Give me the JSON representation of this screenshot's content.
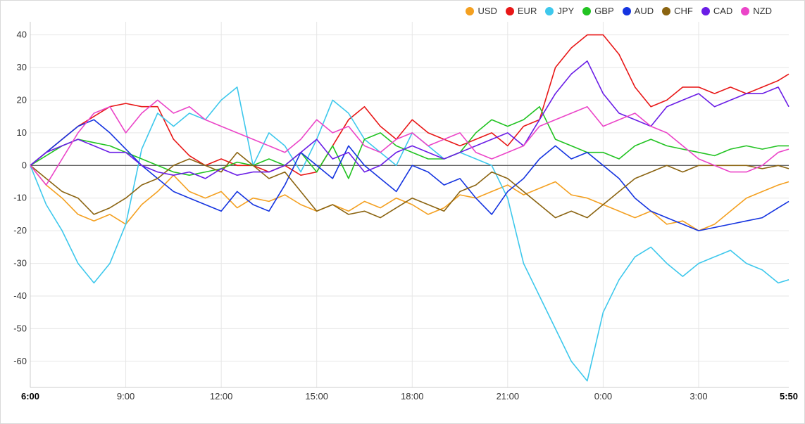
{
  "chart_data": {
    "type": "line",
    "x_ticks": [
      "6:00",
      "9:00",
      "12:00",
      "15:00",
      "18:00",
      "21:00",
      "0:00",
      "3:00",
      "5:50"
    ],
    "y_ticks": [
      40,
      30,
      20,
      10,
      0,
      -10,
      -20,
      -30,
      -40,
      -50,
      -60
    ],
    "ylim": [
      -68,
      44
    ],
    "xlim_hours": [
      0,
      23.833
    ],
    "grid": true,
    "legend_position": "top-right",
    "series": [
      {
        "name": "USD",
        "color": "#f4a020",
        "hours": [
          0,
          0.5,
          1,
          1.5,
          2,
          2.5,
          3,
          3.5,
          4,
          4.5,
          5,
          5.5,
          6,
          6.5,
          7,
          7.5,
          8,
          8.5,
          9,
          9.5,
          10,
          10.5,
          11,
          11.5,
          12,
          12.5,
          13,
          13.5,
          14,
          14.5,
          15,
          15.5,
          16,
          16.5,
          17,
          17.5,
          18,
          18.5,
          19,
          19.5,
          20,
          20.5,
          21,
          21.5,
          22,
          22.5,
          23,
          23.5,
          23.833
        ],
        "values": [
          0,
          -6,
          -10,
          -15,
          -17,
          -15,
          -18,
          -12,
          -8,
          -3,
          -8,
          -10,
          -8,
          -13,
          -10,
          -11,
          -9,
          -12,
          -14,
          -12,
          -14,
          -11,
          -13,
          -10,
          -12,
          -15,
          -13,
          -9,
          -10,
          -8,
          -6,
          -9,
          -7,
          -5,
          -9,
          -10,
          -12,
          -14,
          -16,
          -14,
          -18,
          -17,
          -20,
          -18,
          -14,
          -10,
          -8,
          -6,
          -5
        ]
      },
      {
        "name": "EUR",
        "color": "#e81717",
        "hours": [
          0,
          0.5,
          1,
          1.5,
          2,
          2.5,
          3,
          3.5,
          4,
          4.5,
          5,
          5.5,
          6,
          6.5,
          7,
          7.5,
          8,
          8.5,
          9,
          9.5,
          10,
          10.5,
          11,
          11.5,
          12,
          12.5,
          13,
          13.5,
          14,
          14.5,
          15,
          15.5,
          16,
          16.5,
          17,
          17.5,
          18,
          18.5,
          19,
          19.5,
          20,
          20.5,
          21,
          21.5,
          22,
          22.5,
          23,
          23.5,
          23.833
        ],
        "values": [
          0,
          4,
          8,
          12,
          15,
          18,
          19,
          18,
          18,
          8,
          3,
          0,
          2,
          0,
          0,
          -2,
          0,
          -3,
          -2,
          6,
          14,
          18,
          12,
          8,
          14,
          10,
          8,
          6,
          8,
          10,
          6,
          12,
          14,
          30,
          36,
          40,
          40,
          34,
          24,
          18,
          20,
          24,
          24,
          22,
          24,
          22,
          24,
          26,
          28
        ]
      },
      {
        "name": "JPY",
        "color": "#3ec8ec",
        "hours": [
          0,
          0.5,
          1,
          1.5,
          2,
          2.5,
          3,
          3.5,
          4,
          4.5,
          5,
          5.5,
          6,
          6.5,
          7,
          7.5,
          8,
          8.5,
          9,
          9.5,
          10,
          10.5,
          11,
          11.5,
          12,
          12.5,
          13,
          13.5,
          14,
          14.5,
          15,
          15.5,
          16,
          16.5,
          17,
          17.5,
          18,
          18.5,
          19,
          19.5,
          20,
          20.5,
          21,
          21.5,
          22,
          22.5,
          23,
          23.5,
          23.833
        ],
        "values": [
          0,
          -12,
          -20,
          -30,
          -36,
          -30,
          -18,
          5,
          16,
          12,
          16,
          14,
          20,
          24,
          0,
          10,
          6,
          -2,
          8,
          20,
          16,
          8,
          4,
          0,
          10,
          6,
          2,
          4,
          2,
          0,
          -10,
          -30,
          -40,
          -50,
          -60,
          -66,
          -45,
          -35,
          -28,
          -25,
          -30,
          -34,
          -30,
          -28,
          -26,
          -30,
          -32,
          -36,
          -35
        ]
      },
      {
        "name": "GBP",
        "color": "#22c322",
        "hours": [
          0,
          0.5,
          1,
          1.5,
          2,
          2.5,
          3,
          3.5,
          4,
          4.5,
          5,
          5.5,
          6,
          6.5,
          7,
          7.5,
          8,
          8.5,
          9,
          9.5,
          10,
          10.5,
          11,
          11.5,
          12,
          12.5,
          13,
          13.5,
          14,
          14.5,
          15,
          15.5,
          16,
          16.5,
          17,
          17.5,
          18,
          18.5,
          19,
          19.5,
          20,
          20.5,
          21,
          21.5,
          22,
          22.5,
          23,
          23.5,
          23.833
        ],
        "values": [
          0,
          3,
          6,
          8,
          7,
          6,
          4,
          2,
          0,
          -2,
          -3,
          -2,
          -1,
          1,
          0,
          2,
          0,
          4,
          -2,
          6,
          -4,
          8,
          10,
          6,
          4,
          2,
          2,
          4,
          10,
          14,
          12,
          14,
          18,
          8,
          6,
          4,
          4,
          2,
          6,
          8,
          6,
          5,
          4,
          3,
          5,
          6,
          5,
          6,
          6
        ]
      },
      {
        "name": "AUD",
        "color": "#1534e0",
        "hours": [
          0,
          0.5,
          1,
          1.5,
          2,
          2.5,
          3,
          3.5,
          4,
          4.5,
          5,
          5.5,
          6,
          6.5,
          7,
          7.5,
          8,
          8.5,
          9,
          9.5,
          10,
          10.5,
          11,
          11.5,
          12,
          12.5,
          13,
          13.5,
          14,
          14.5,
          15,
          15.5,
          16,
          16.5,
          17,
          17.5,
          18,
          18.5,
          19,
          19.5,
          20,
          20.5,
          21,
          21.5,
          22,
          22.5,
          23,
          23.5,
          23.833
        ],
        "values": [
          0,
          4,
          8,
          12,
          14,
          10,
          5,
          0,
          -4,
          -8,
          -10,
          -12,
          -14,
          -8,
          -12,
          -14,
          -6,
          4,
          0,
          -4,
          6,
          0,
          -4,
          -8,
          0,
          -2,
          -6,
          -4,
          -10,
          -15,
          -8,
          -4,
          2,
          6,
          2,
          4,
          0,
          -4,
          -10,
          -14,
          -16,
          -18,
          -20,
          -19,
          -18,
          -17,
          -16,
          -13,
          -11
        ]
      },
      {
        "name": "CHF",
        "color": "#8b6411",
        "hours": [
          0,
          0.5,
          1,
          1.5,
          2,
          2.5,
          3,
          3.5,
          4,
          4.5,
          5,
          5.5,
          6,
          6.5,
          7,
          7.5,
          8,
          8.5,
          9,
          9.5,
          10,
          10.5,
          11,
          11.5,
          12,
          12.5,
          13,
          13.5,
          14,
          14.5,
          15,
          15.5,
          16,
          16.5,
          17,
          17.5,
          18,
          18.5,
          19,
          19.5,
          20,
          20.5,
          21,
          21.5,
          22,
          22.5,
          23,
          23.5,
          23.833
        ],
        "values": [
          0,
          -4,
          -8,
          -10,
          -15,
          -13,
          -10,
          -6,
          -4,
          0,
          2,
          0,
          -2,
          4,
          0,
          -4,
          -2,
          -8,
          -14,
          -12,
          -15,
          -14,
          -16,
          -13,
          -10,
          -12,
          -14,
          -8,
          -6,
          -2,
          -4,
          -8,
          -12,
          -16,
          -14,
          -16,
          -12,
          -8,
          -4,
          -2,
          0,
          -2,
          0,
          0,
          0,
          0,
          -1,
          0,
          -1
        ]
      },
      {
        "name": "CAD",
        "color": "#6a1de6",
        "hours": [
          0,
          0.5,
          1,
          1.5,
          2,
          2.5,
          3,
          3.5,
          4,
          4.5,
          5,
          5.5,
          6,
          6.5,
          7,
          7.5,
          8,
          8.5,
          9,
          9.5,
          10,
          10.5,
          11,
          11.5,
          12,
          12.5,
          13,
          13.5,
          14,
          14.5,
          15,
          15.5,
          16,
          16.5,
          17,
          17.5,
          18,
          18.5,
          19,
          19.5,
          20,
          20.5,
          21,
          21.5,
          22,
          22.5,
          23,
          23.5,
          23.833
        ],
        "values": [
          0,
          4,
          6,
          8,
          6,
          4,
          4,
          0,
          -2,
          -3,
          -2,
          -4,
          -1,
          -3,
          -2,
          -2,
          0,
          4,
          8,
          2,
          4,
          -2,
          0,
          4,
          6,
          4,
          2,
          4,
          6,
          8,
          10,
          6,
          14,
          22,
          28,
          32,
          22,
          16,
          14,
          12,
          18,
          20,
          22,
          18,
          20,
          22,
          22,
          24,
          18
        ]
      },
      {
        "name": "NZD",
        "color": "#eb45c8",
        "hours": [
          0,
          0.5,
          1,
          1.5,
          2,
          2.5,
          3,
          3.5,
          4,
          4.5,
          5,
          5.5,
          6,
          6.5,
          7,
          7.5,
          8,
          8.5,
          9,
          9.5,
          10,
          10.5,
          11,
          11.5,
          12,
          12.5,
          13,
          13.5,
          14,
          14.5,
          15,
          15.5,
          16,
          16.5,
          17,
          17.5,
          18,
          18.5,
          19,
          19.5,
          20,
          20.5,
          21,
          21.5,
          22,
          22.5,
          23,
          23.5,
          23.833
        ],
        "values": [
          0,
          -6,
          2,
          10,
          16,
          18,
          10,
          16,
          20,
          16,
          18,
          14,
          12,
          10,
          8,
          6,
          4,
          8,
          14,
          10,
          12,
          6,
          4,
          8,
          10,
          6,
          8,
          10,
          4,
          2,
          4,
          6,
          12,
          14,
          16,
          18,
          12,
          14,
          16,
          12,
          10,
          6,
          2,
          0,
          -2,
          -2,
          0,
          4,
          5
        ]
      }
    ]
  }
}
